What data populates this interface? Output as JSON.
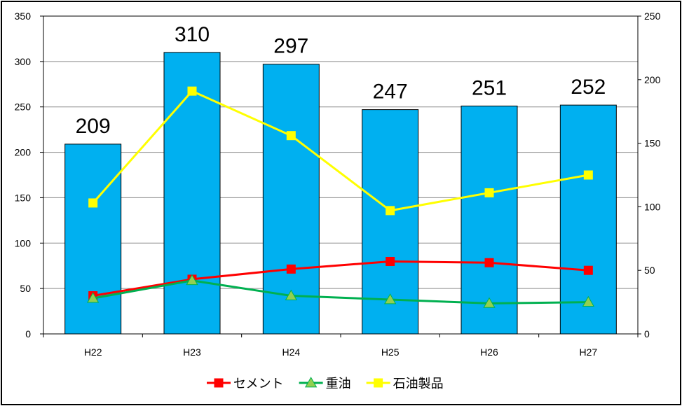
{
  "chart_data": {
    "type": "bar",
    "categories": [
      "H22",
      "H23",
      "H24",
      "H25",
      "H26",
      "H27"
    ],
    "series": [
      {
        "values": [
          209,
          310,
          297,
          247,
          251,
          252
        ],
        "color": "#00B0F0",
        "axis": "left",
        "kind": "bar",
        "data_labels": [
          "209",
          "310",
          "297",
          "247",
          "251",
          "252"
        ]
      },
      {
        "name": "セメント",
        "values": [
          30,
          43,
          51,
          57,
          56,
          50
        ],
        "color": "#FF0000",
        "marker_fill": "#FF0000",
        "axis": "right",
        "kind": "line",
        "marker": "square"
      },
      {
        "name": "重油",
        "values": [
          28,
          42,
          30,
          27,
          24,
          25
        ],
        "color": "#00B050",
        "marker_fill": "#92D050",
        "axis": "right",
        "kind": "line",
        "marker": "triangle"
      },
      {
        "name": "石油製品",
        "values": [
          103,
          191,
          156,
          97,
          111,
          125
        ],
        "color": "#FFFF00",
        "marker_fill": "#FFFF00",
        "axis": "right",
        "kind": "line",
        "marker": "square"
      }
    ],
    "ylim": [
      0,
      350
    ],
    "yticks": [
      "0",
      "50",
      "100",
      "150",
      "200",
      "250",
      "300",
      "350"
    ],
    "y2lim": [
      0,
      250
    ],
    "y2ticks": [
      "0",
      "50",
      "100",
      "150",
      "200",
      "250"
    ],
    "grid": true,
    "legend_position": "bottom"
  }
}
